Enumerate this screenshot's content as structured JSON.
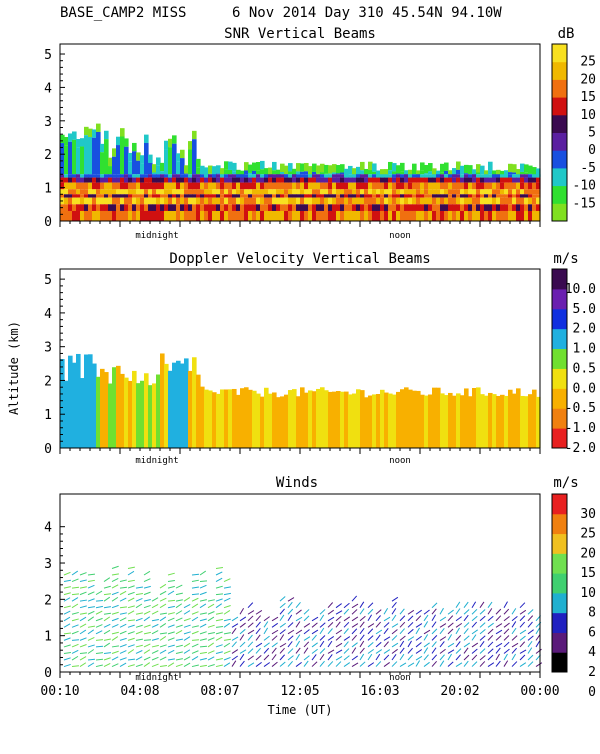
{
  "header": {
    "station": "BASE_CAMP2 MISS",
    "date": "6 Nov 2014 Day 310 45.54N   94.10W"
  },
  "colors": {
    "snr_scale": [
      "#80e020",
      "#30e030",
      "#20c8c8",
      "#1850e0",
      "#5a1fa0",
      "#3a0a50",
      "#d01010",
      "#f07010",
      "#f0b800",
      "#f8e020"
    ],
    "vel_scale": [
      "#e82020",
      "#f08010",
      "#f8b000",
      "#f0e010",
      "#70e030",
      "#20b0e0",
      "#1030e0",
      "#6a1fb0",
      "#3a0a50"
    ],
    "wind_scale": [
      "#000000",
      "#5a1a7a",
      "#2020c0",
      "#20b0d0",
      "#40d070",
      "#70e050",
      "#f0c020",
      "#f08010",
      "#e82020"
    ]
  },
  "chart_data": [
    {
      "type": "heatmap",
      "title": "SNR Vertical Beams",
      "unit": "dB",
      "ylim": [
        0,
        5.3
      ],
      "yticks": [
        "0",
        "1",
        "2",
        "3",
        "4",
        "5"
      ],
      "colorbar_labels": [
        "25",
        "20",
        "15",
        "10",
        "5",
        "0",
        "-5",
        "-10",
        "-15"
      ],
      "x_annotations": [
        "midnight",
        "noon"
      ],
      "grid": false
    },
    {
      "type": "heatmap",
      "title": "Doppler Velocity Vertical Beams",
      "unit": "m/s",
      "ylabel": "Altitude (km)",
      "ylim": [
        0,
        5.3
      ],
      "yticks": [
        "0",
        "1",
        "2",
        "3",
        "4",
        "5"
      ],
      "colorbar_labels": [
        "10.0",
        "5.0",
        "2.0",
        "1.0",
        "0.5",
        "0.0",
        "-0.5",
        "-1.0",
        "-2.0"
      ],
      "x_annotations": [
        "midnight",
        "noon"
      ],
      "grid": false
    },
    {
      "type": "scatter",
      "title": "Winds",
      "unit": "m/s",
      "xlabel": "Time (UT)",
      "ylim": [
        0,
        4.9
      ],
      "yticks": [
        "0",
        "1",
        "2",
        "3",
        "4"
      ],
      "xticks": [
        "00:10",
        "04:08",
        "08:07",
        "12:05",
        "16:03",
        "20:02",
        "00:00"
      ],
      "colorbar_labels": [
        "30",
        "25",
        "20",
        "15",
        "10",
        "8",
        "6",
        "4",
        "2",
        "0"
      ],
      "x_annotations": [
        "midnight",
        "noon"
      ],
      "grid": false
    }
  ]
}
